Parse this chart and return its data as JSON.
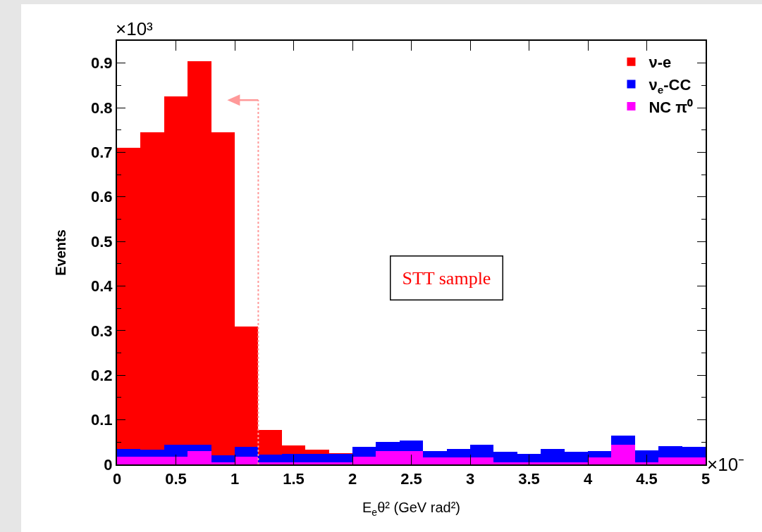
{
  "chart_data": {
    "type": "bar",
    "ylabel": "Events",
    "xlabel": "E$_{e}$θ² (GeV rad²)",
    "annotations": [
      "×10³",
      "×10⁻",
      "STT sample"
    ],
    "x": [
      0.1,
      0.3,
      0.5,
      0.7,
      0.9,
      1.1,
      1.3,
      1.5,
      1.7,
      1.9,
      2.1,
      2.3,
      2.5,
      2.7,
      2.9,
      3.1,
      3.3,
      3.5,
      3.7,
      3.9,
      4.1,
      4.3,
      4.5,
      4.7,
      4.9
    ],
    "stacked": true,
    "series": [
      {
        "name": "NC π⁰",
        "color": "#ff00ff",
        "values": [
          0.018,
          0.018,
          0.018,
          0.03,
          0.005,
          0.018,
          0.005,
          0.005,
          0.005,
          0.005,
          0.018,
          0.03,
          0.03,
          0.016,
          0.016,
          0.016,
          0.005,
          0.005,
          0.005,
          0.005,
          0.016,
          0.044,
          0.005,
          0.016,
          0.016
        ]
      },
      {
        "name": "ν$_{e}$-CC",
        "color": "#0000ff",
        "values": [
          0.017,
          0.015,
          0.026,
          0.014,
          0.016,
          0.021,
          0.017,
          0.019,
          0.019,
          0.019,
          0.021,
          0.02,
          0.024,
          0.014,
          0.018,
          0.028,
          0.023,
          0.019,
          0.03,
          0.023,
          0.014,
          0.021,
          0.027,
          0.025,
          0.023
        ]
      },
      {
        "name": "ν-e",
        "color": "#ff0000",
        "values": [
          0.675,
          0.712,
          0.781,
          0.861,
          0.724,
          0.271,
          0.056,
          0.018,
          0.009,
          0.002,
          0,
          0,
          0,
          0,
          0,
          0,
          0,
          0,
          0,
          0,
          0,
          0,
          0,
          0,
          0
        ]
      }
    ],
    "xlim": [
      0,
      5
    ],
    "xticks": [
      0,
      0.5,
      1,
      1.5,
      2,
      2.5,
      3,
      3.5,
      4,
      4.5,
      5
    ],
    "ylim": [
      0,
      0.95
    ],
    "yticks": [
      0,
      0.1,
      0.2,
      0.3,
      0.4,
      0.5,
      0.6,
      0.7,
      0.8,
      0.9
    ],
    "ref_lines": [
      {
        "axis": "x",
        "value": 1.2,
        "color": "#ff9999",
        "line_style": "dotted"
      }
    ],
    "legend": "top right",
    "grid": false
  }
}
